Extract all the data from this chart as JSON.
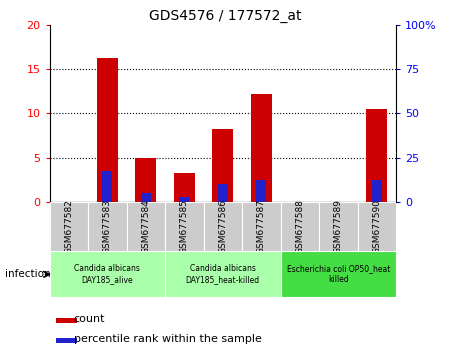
{
  "title": "GDS4576 / 177572_at",
  "categories": [
    "GSM677582",
    "GSM677583",
    "GSM677584",
    "GSM677585",
    "GSM677586",
    "GSM677587",
    "GSM677588",
    "GSM677589",
    "GSM677590"
  ],
  "count_values": [
    0.0,
    16.2,
    5.0,
    3.2,
    8.2,
    12.2,
    0.0,
    0.0,
    10.5
  ],
  "percentile_values": [
    0.0,
    3.5,
    1.0,
    0.5,
    2.0,
    2.5,
    0.0,
    0.0,
    2.5
  ],
  "ylim_left": [
    0,
    20
  ],
  "ylim_right": [
    0,
    100
  ],
  "yticks_left": [
    0,
    5,
    10,
    15,
    20
  ],
  "yticks_right": [
    0,
    25,
    50,
    75,
    100
  ],
  "ytick_labels_right": [
    "0",
    "25",
    "50",
    "75",
    "100%"
  ],
  "bar_color_red": "#cc0000",
  "bar_color_blue": "#2222cc",
  "groups": [
    {
      "label": "Candida albicans\nDAY185_alive",
      "start": 0,
      "end": 3,
      "color": "#aaffaa"
    },
    {
      "label": "Candida albicans\nDAY185_heat-killed",
      "start": 3,
      "end": 6,
      "color": "#aaffaa"
    },
    {
      "label": "Escherichia coli OP50_heat\nkilled",
      "start": 6,
      "end": 9,
      "color": "#44dd44"
    }
  ],
  "infection_label": "infection",
  "legend_count": "count",
  "legend_percentile": "percentile rank within the sample",
  "bar_width": 0.55,
  "blue_bar_width": 0.25,
  "tick_bg_color": "#cccccc",
  "grid_ticks": [
    5,
    10,
    15
  ]
}
